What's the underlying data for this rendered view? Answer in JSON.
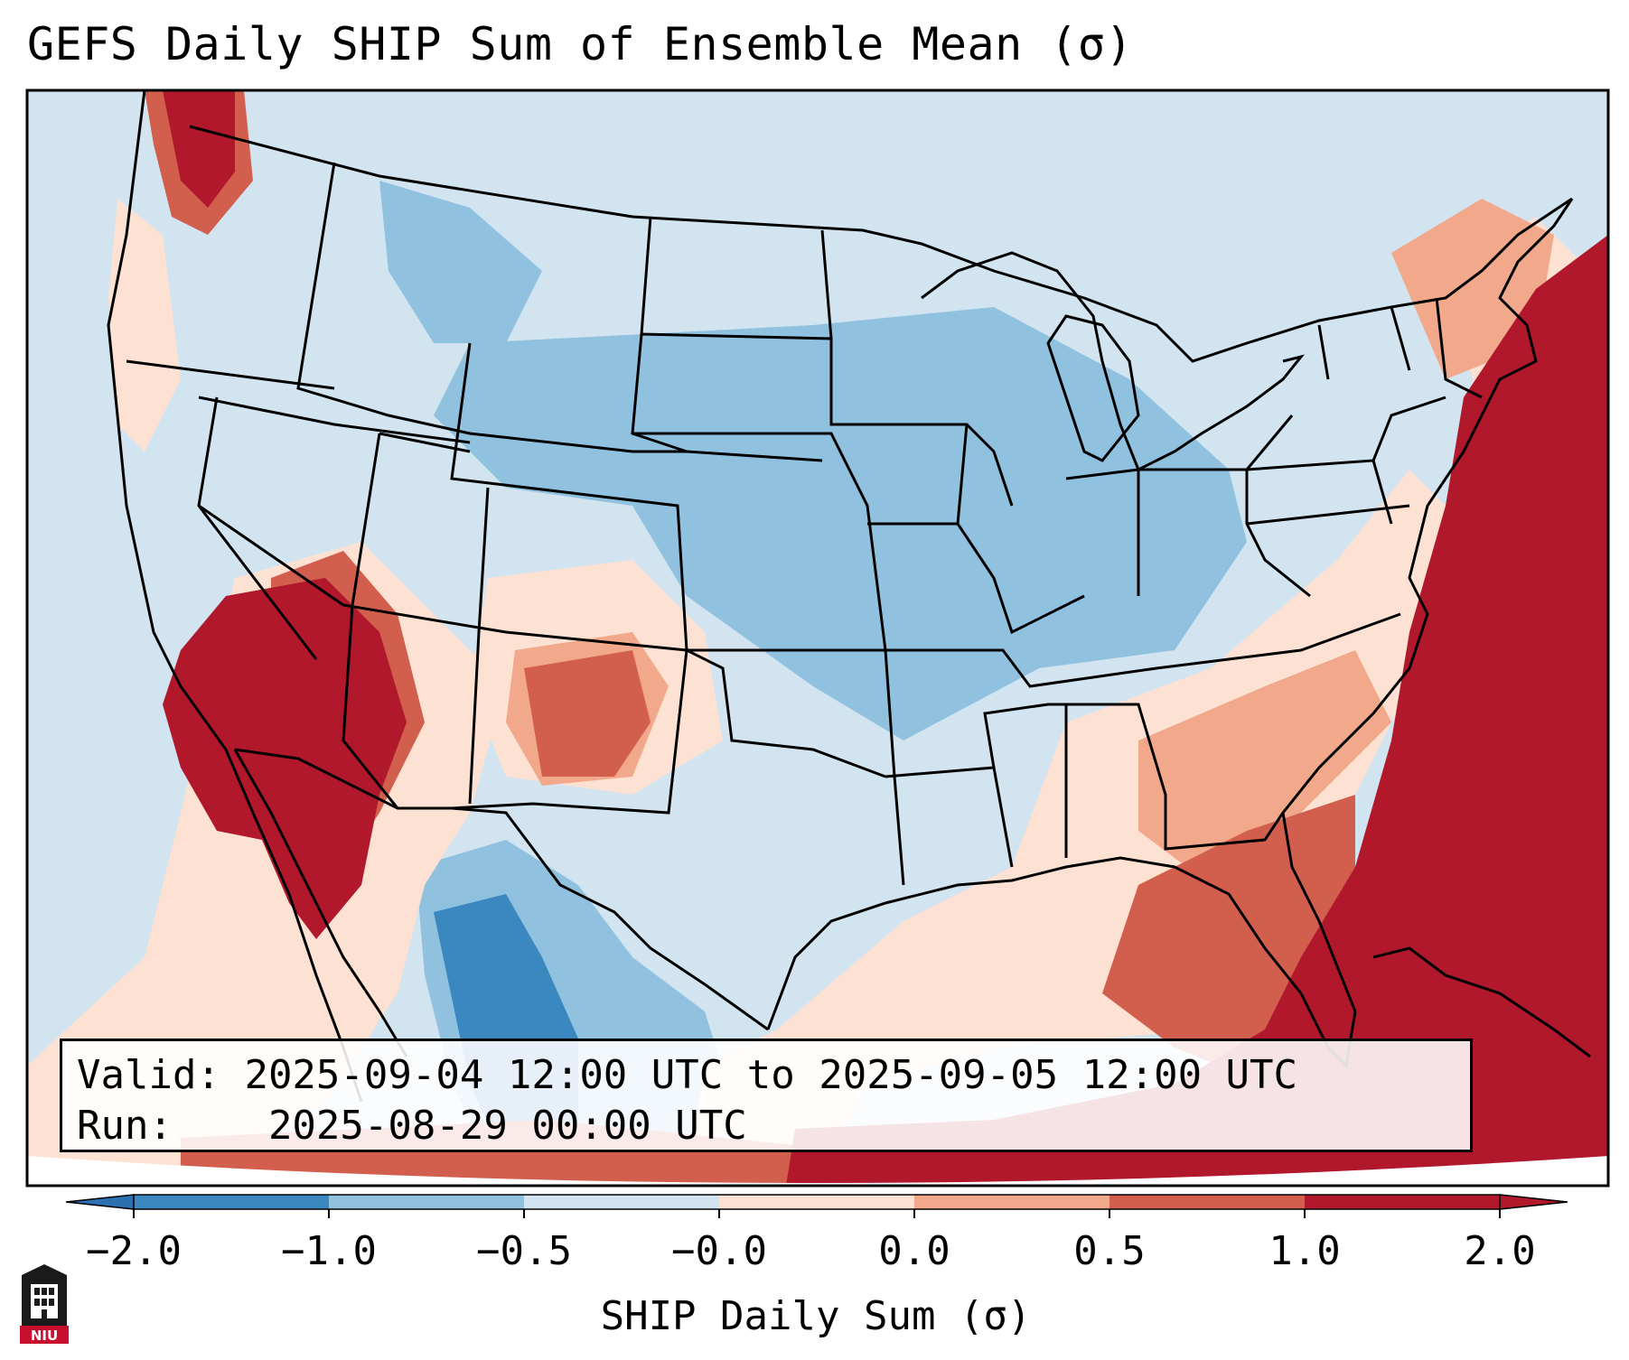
{
  "title": "GEFS Daily SHIP Sum of Ensemble Mean (σ)",
  "info": {
    "valid_label": "Valid:",
    "valid_value": "2025-09-04 12:00 UTC to 2025-09-05 12:00 UTC",
    "run_label": "Run:",
    "run_value": "2025-08-29 00:00 UTC"
  },
  "colorbar": {
    "title": "SHIP Daily Sum (σ)",
    "ticks": [
      "−2.0",
      "−1.0",
      "−0.5",
      "−0.0",
      "0.0",
      "0.5",
      "1.0",
      "2.0"
    ],
    "colors": [
      "#3b87c0",
      "#90c1df",
      "#d1e4f0",
      "#fde1d3",
      "#f2a88a",
      "#d25e4d",
      "#b2182b"
    ],
    "extend_low": "#2b70b0",
    "extend_high": "#b2182b"
  },
  "logo_text": "NIU",
  "colors": {
    "background_field": "#d1e4f0",
    "borders": "#000000"
  }
}
